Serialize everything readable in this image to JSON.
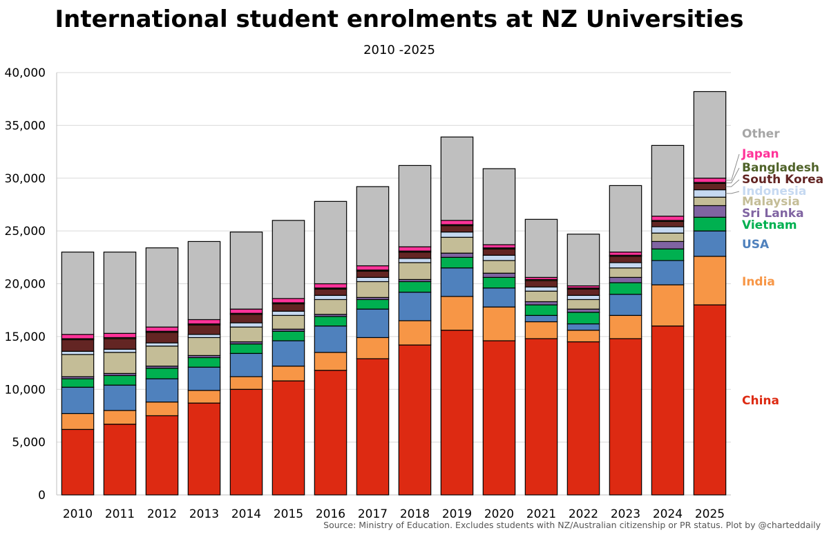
{
  "chart_data": {
    "type": "bar",
    "stacked": true,
    "title": "International student enrolments at NZ Universities",
    "subtitle": "2010 -2025",
    "xlabel": "",
    "ylabel": "",
    "ylim": [
      0,
      40000
    ],
    "y_ticks": [
      0,
      5000,
      10000,
      15000,
      20000,
      25000,
      30000,
      35000,
      40000
    ],
    "y_tick_labels": [
      "0",
      "5,000",
      "10,000",
      "15,000",
      "20,000",
      "25,000",
      "30,000",
      "35,000",
      "40,000"
    ],
    "grid": true,
    "legend": "inline-right",
    "categories": [
      "2010",
      "2011",
      "2012",
      "2013",
      "2014",
      "2015",
      "2016",
      "2017",
      "2018",
      "2019",
      "2020",
      "2021",
      "2022",
      "2023",
      "2024",
      "2025"
    ],
    "series": [
      {
        "name": "China",
        "color": "#dd2a12",
        "values": [
          6200,
          6700,
          7500,
          8700,
          10000,
          10800,
          11800,
          12900,
          14200,
          15600,
          14600,
          14800,
          14500,
          14800,
          16000,
          18000
        ]
      },
      {
        "name": "India",
        "color": "#f79646",
        "values": [
          1500,
          1300,
          1300,
          1200,
          1200,
          1400,
          1700,
          2000,
          2300,
          3200,
          3200,
          1600,
          1100,
          2200,
          3900,
          4600
        ]
      },
      {
        "name": "USA",
        "color": "#4f81bd",
        "values": [
          2500,
          2400,
          2200,
          2200,
          2200,
          2400,
          2500,
          2700,
          2700,
          2700,
          1800,
          600,
          600,
          2000,
          2300,
          2400
        ]
      },
      {
        "name": "Vietnam",
        "color": "#00b050",
        "values": [
          800,
          900,
          1000,
          900,
          900,
          900,
          900,
          900,
          1000,
          1000,
          1000,
          1000,
          1100,
          1100,
          1100,
          1300
        ]
      },
      {
        "name": "Sri Lanka",
        "color": "#8064a2",
        "values": [
          200,
          200,
          200,
          200,
          200,
          200,
          200,
          200,
          200,
          400,
          400,
          300,
          300,
          500,
          700,
          1100
        ]
      },
      {
        "name": "Malaysia",
        "color": "#c4bd97",
        "values": [
          2100,
          2000,
          1900,
          1700,
          1400,
          1300,
          1400,
          1500,
          1600,
          1500,
          1200,
          1000,
          900,
          900,
          800,
          800
        ]
      },
      {
        "name": "Indonesia",
        "color": "#c6d9f1",
        "values": [
          300,
          300,
          300,
          300,
          400,
          400,
          400,
          400,
          400,
          500,
          500,
          400,
          400,
          500,
          600,
          700
        ]
      },
      {
        "name": "South Korea",
        "color": "#632523",
        "values": [
          1100,
          1000,
          1000,
          900,
          800,
          700,
          600,
          600,
          600,
          600,
          600,
          600,
          600,
          600,
          500,
          600
        ]
      },
      {
        "name": "Bangladesh",
        "color": "#4f6228",
        "values": [
          100,
          100,
          100,
          100,
          100,
          100,
          100,
          100,
          100,
          100,
          100,
          100,
          100,
          100,
          100,
          100
        ]
      },
      {
        "name": "Japan",
        "color": "#ff3399",
        "values": [
          400,
          400,
          400,
          400,
          400,
          400,
          400,
          400,
          400,
          400,
          300,
          200,
          200,
          300,
          400,
          400
        ]
      },
      {
        "name": "Other",
        "color": "#bfbfbf",
        "values": [
          7800,
          7700,
          7500,
          7400,
          7300,
          7400,
          7800,
          7500,
          7700,
          7900,
          7200,
          5500,
          4900,
          6300,
          6700,
          8200
        ]
      }
    ],
    "label_colors": {
      "Other": "#a6a6a6",
      "Japan": "#ff3399",
      "Bangladesh": "#4f6228",
      "South Korea": "#632523",
      "Indonesia": "#c6d9f1",
      "Malaysia": "#c4bd97",
      "Sri Lanka": "#8064a2",
      "Vietnam": "#00b050",
      "USA": "#4f81bd",
      "India": "#f79646",
      "China": "#dd2a12"
    }
  },
  "source_note": "Source: Ministry of Education. Excludes students with NZ/Australian citizenship or PR status. Plot by @charteddaily"
}
